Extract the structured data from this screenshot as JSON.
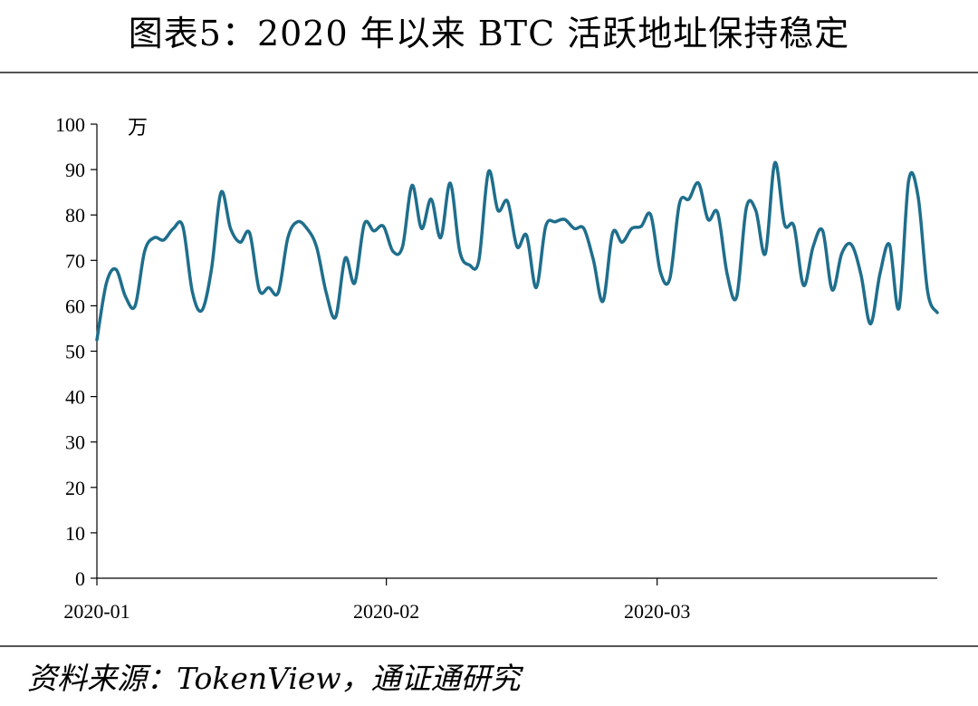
{
  "title": "图表5：2020 年以来 BTC 活跃地址保持稳定",
  "source": "资料来源：TokenView，通证通研究",
  "chart_data": {
    "type": "line",
    "unit": "万",
    "ylim": [
      0,
      100
    ],
    "yticks": [
      0,
      10,
      20,
      30,
      40,
      50,
      60,
      70,
      80,
      90,
      100
    ],
    "xticks": [
      "2020-01",
      "2020-02",
      "2020-03"
    ],
    "x_start": "2020-01-01",
    "x_end": "2020-03-31",
    "grid": false,
    "legend": false,
    "color": "#1f6e8c",
    "series": [
      {
        "values": [
          52.5,
          65,
          68,
          62,
          60,
          72,
          75,
          74.5,
          77,
          77.5,
          63,
          59,
          68,
          85,
          77,
          74,
          76,
          63.5,
          64,
          63,
          75,
          78.5,
          77,
          73,
          63,
          57.5,
          70.5,
          65,
          78,
          76.5,
          77.5,
          72,
          73,
          86.5,
          77,
          83.5,
          75,
          87,
          72,
          69,
          70,
          89.5,
          81,
          83,
          73,
          75.5,
          64,
          77.5,
          78.5,
          79,
          77,
          77,
          70,
          61,
          76,
          74,
          77,
          77.5,
          80,
          67.5,
          66,
          82.5,
          83.5,
          87,
          79,
          80.5,
          67,
          62,
          81.5,
          81,
          71.5,
          91.5,
          78,
          77.5,
          64.5,
          73,
          76.5,
          63.5,
          71.5,
          73.5,
          67,
          56,
          67,
          73.5,
          59.5,
          87.5,
          84,
          63,
          58.5
        ]
      }
    ]
  }
}
